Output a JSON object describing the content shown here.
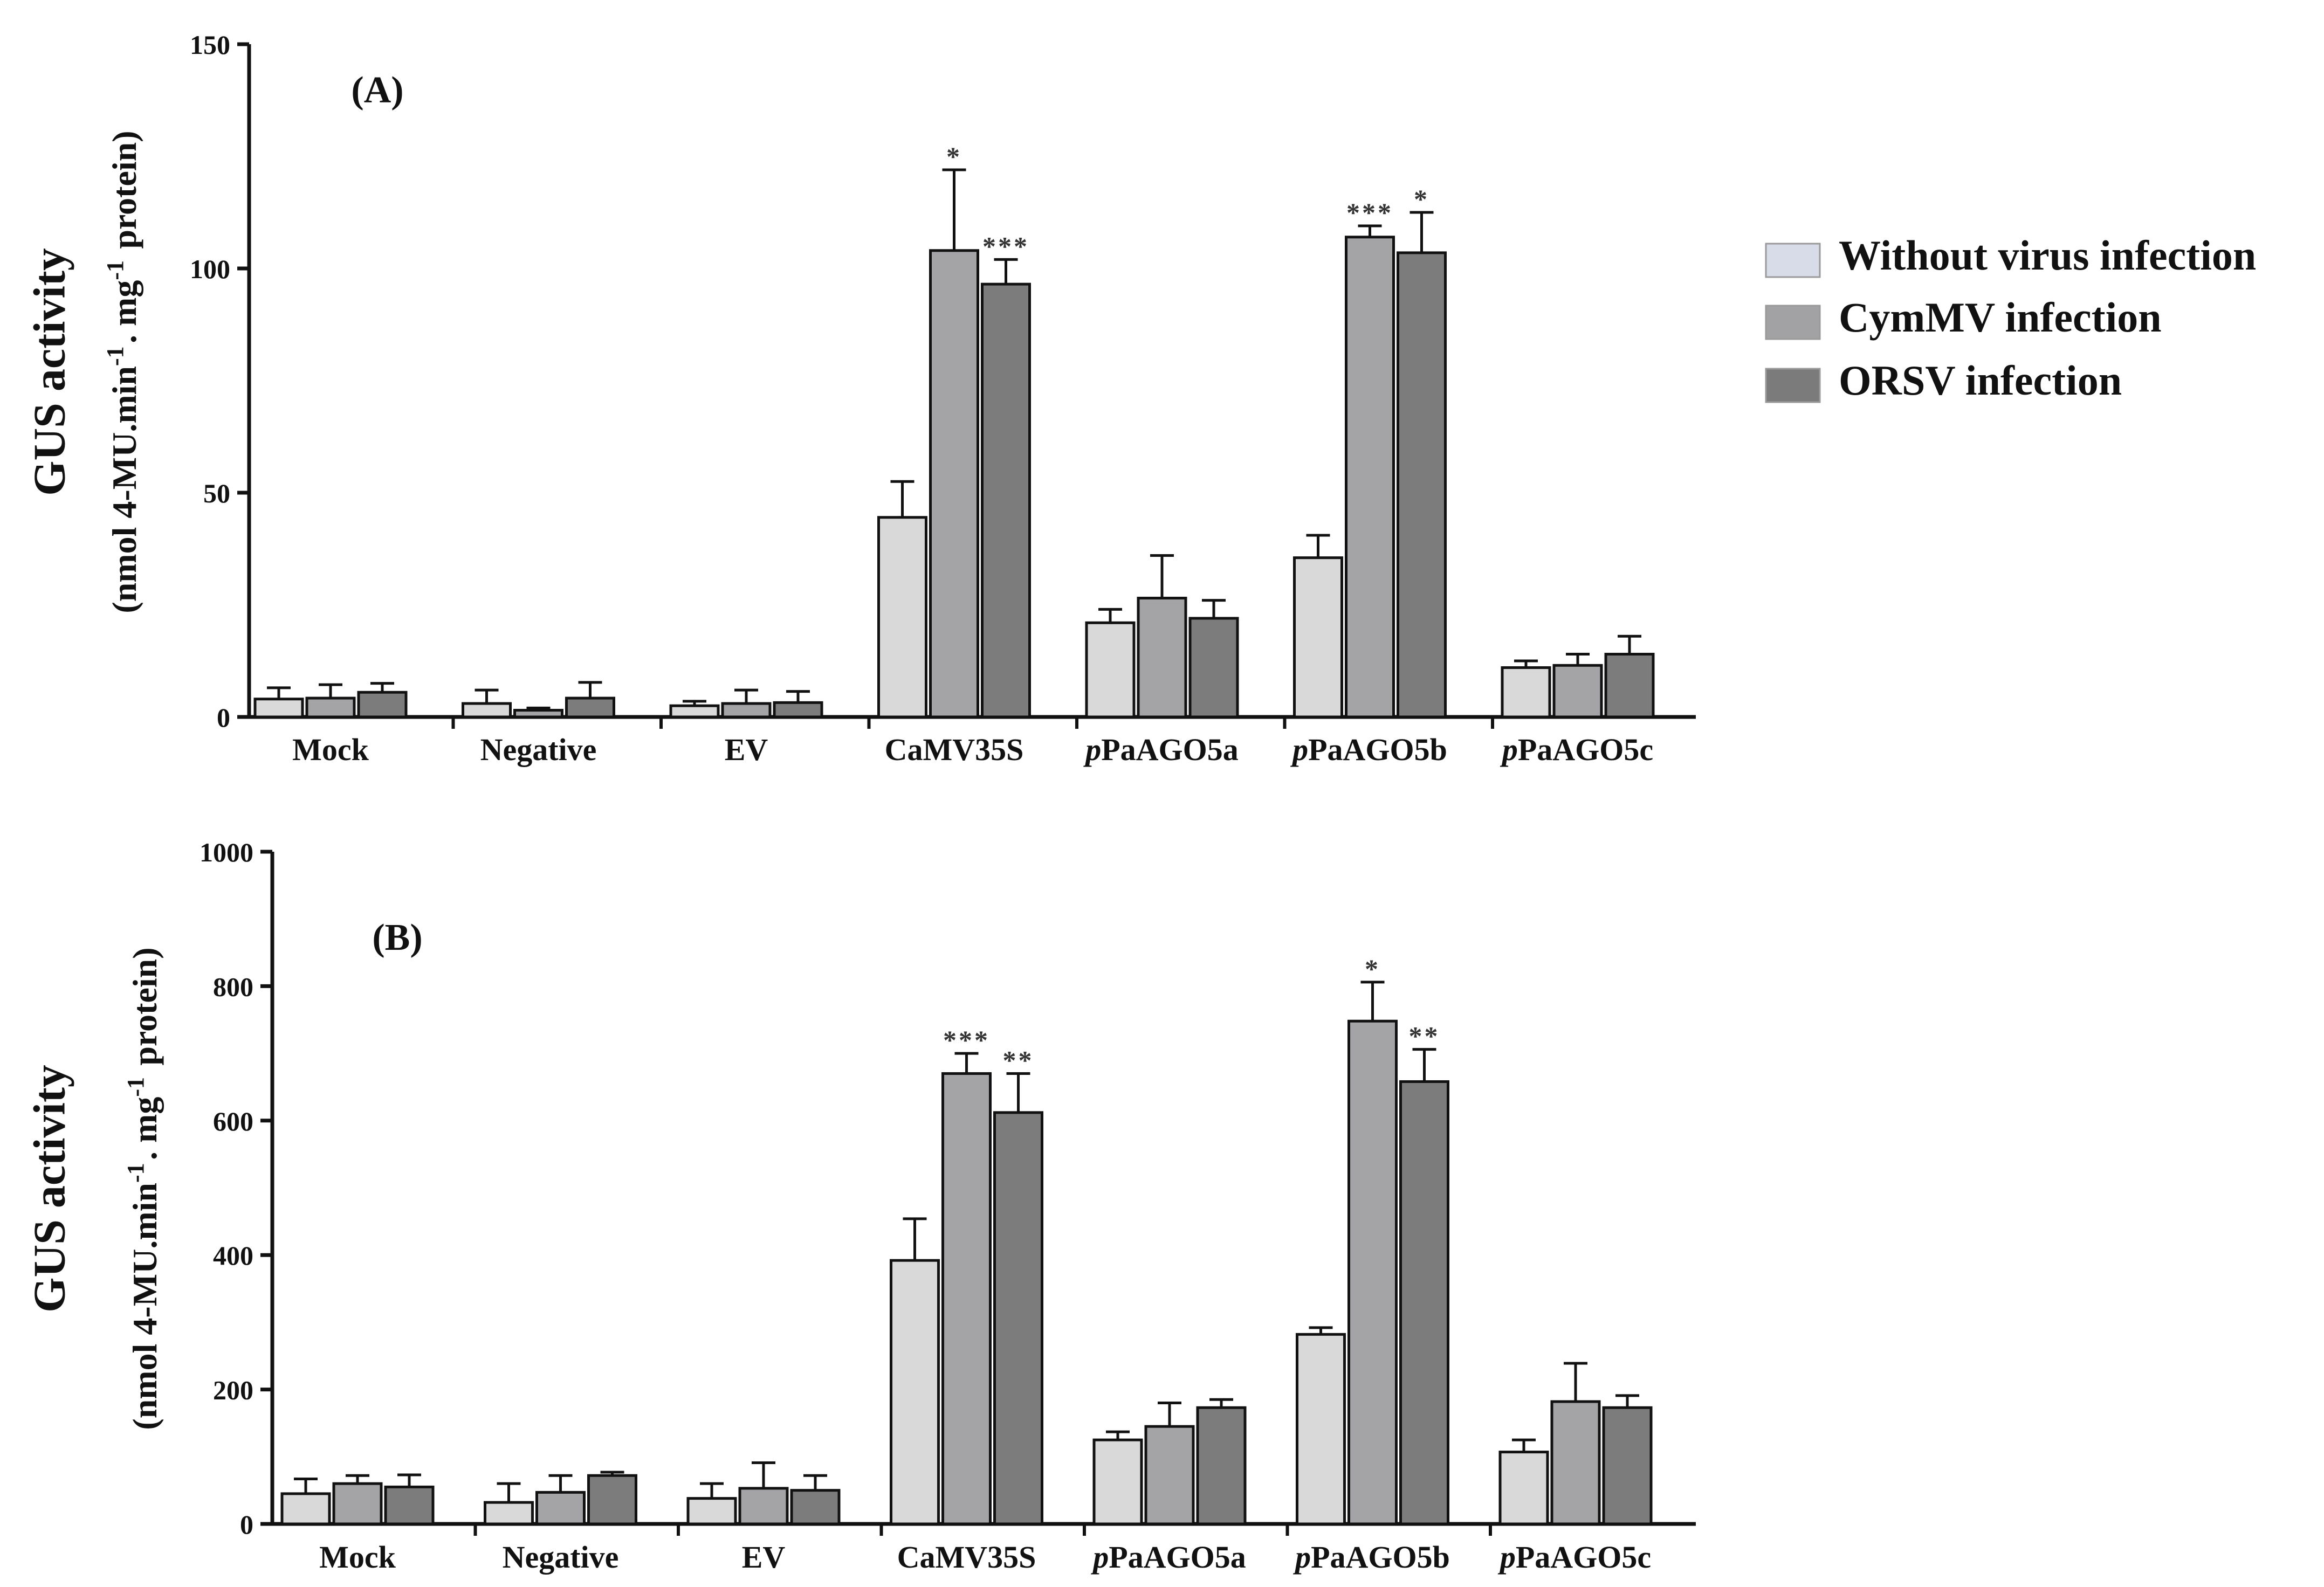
{
  "legend": {
    "items": [
      {
        "label": "Without virus infection",
        "color": "#d8dbe8"
      },
      {
        "label": "CymMV infection",
        "color": "#a2a2a4"
      },
      {
        "label": "ORSV infection",
        "color": "#7b7b7b"
      }
    ]
  },
  "chart_data": [
    {
      "type": "bar",
      "panel_label": "(A)",
      "ylabel_main": "GUS activity",
      "ylabel_unit": "(nmol 4-MU.min-1. mg-1 protein)",
      "ylim": [
        0,
        150
      ],
      "yticks": [
        "0",
        "50",
        "100",
        "150"
      ],
      "categories": [
        "Mock",
        "Negative",
        "EV",
        "CaMV35S",
        "pPaAGO5a",
        "pPaAGO5b",
        "pPaAGO5c"
      ],
      "series": [
        {
          "name": "Without virus infection",
          "color": "#d9d9d9",
          "values": [
            4,
            3,
            2.5,
            44.5,
            21,
            35.5,
            11
          ],
          "errors": [
            2.5,
            3,
            1,
            8,
            3,
            5,
            1.5
          ],
          "sig": [
            "",
            "",
            "",
            "",
            "",
            "",
            ""
          ]
        },
        {
          "name": "CymMV infection",
          "color": "#a4a4a6",
          "values": [
            4.2,
            1.5,
            3,
            104,
            26.5,
            107,
            11.5
          ],
          "errors": [
            3,
            0.5,
            3,
            18,
            9.5,
            2.5,
            2.5
          ],
          "sig": [
            "",
            "",
            "",
            "*",
            "",
            "***",
            ""
          ]
        },
        {
          "name": "ORSV infection",
          "color": "#7c7c7c",
          "values": [
            5.5,
            4.2,
            3.2,
            96.5,
            22,
            103.5,
            14
          ],
          "errors": [
            2,
            3.5,
            2.5,
            5.5,
            4,
            9,
            4
          ],
          "sig": [
            "",
            "",
            "",
            "***",
            "",
            "*",
            ""
          ]
        }
      ]
    },
    {
      "type": "bar",
      "panel_label": "(B)",
      "ylabel_main": "GUS activity",
      "ylabel_unit": "(nmol 4-MU.min-1. mg-1 protein)",
      "ylim": [
        0,
        1000
      ],
      "yticks": [
        "0",
        "200",
        "400",
        "600",
        "800",
        "1000"
      ],
      "categories": [
        "Mock",
        "Negative",
        "EV",
        "CaMV35S",
        "pPaAGO5a",
        "pPaAGO5b",
        "pPaAGO5c"
      ],
      "series": [
        {
          "name": "Without virus infection",
          "color": "#d9d9d9",
          "values": [
            45,
            32,
            38,
            392,
            125,
            282,
            107
          ],
          "errors": [
            22,
            28,
            22,
            62,
            12,
            10,
            18
          ],
          "sig": [
            "",
            "",
            "",
            "",
            "",
            "",
            ""
          ]
        },
        {
          "name": "CymMV infection",
          "color": "#a4a4a6",
          "values": [
            60,
            47,
            53,
            670,
            145,
            748,
            182
          ],
          "errors": [
            12,
            25,
            38,
            30,
            35,
            58,
            57
          ],
          "sig": [
            "",
            "",
            "",
            "***",
            "",
            "*",
            ""
          ]
        },
        {
          "name": "ORSV infection",
          "color": "#7c7c7c",
          "values": [
            55,
            72,
            50,
            612,
            173,
            658,
            173
          ],
          "errors": [
            18,
            5,
            22,
            58,
            12,
            48,
            18
          ],
          "sig": [
            "",
            "",
            "",
            "**",
            "",
            "**",
            ""
          ]
        }
      ]
    }
  ]
}
